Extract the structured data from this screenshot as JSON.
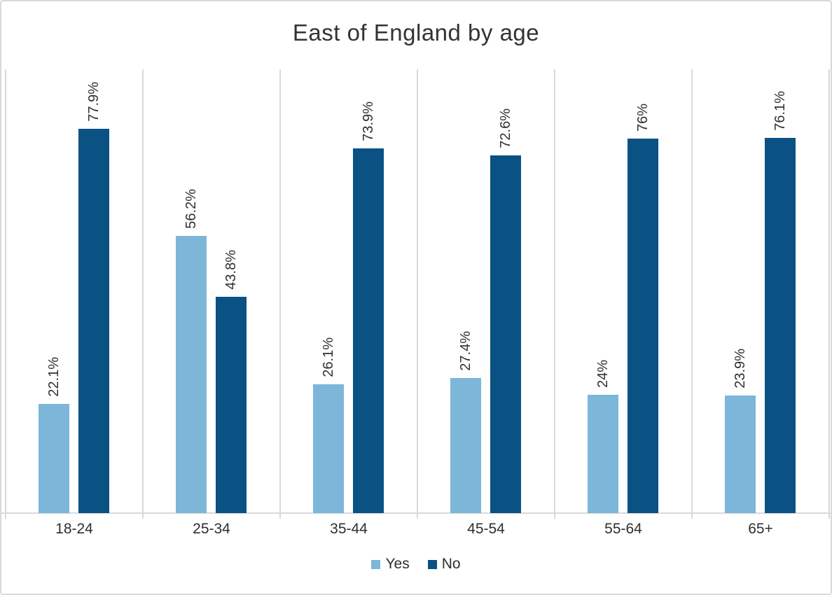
{
  "title": "East of England by age",
  "chart_data": {
    "type": "bar",
    "title": "East of England by age",
    "categories": [
      "18-24",
      "25-34",
      "35-44",
      "45-54",
      "55-64",
      "65+"
    ],
    "series": [
      {
        "name": "Yes",
        "color": "#7CB6D9",
        "values": [
          22.1,
          56.2,
          26.1,
          27.4,
          24,
          23.9
        ],
        "data_labels": [
          "22.1%",
          "56.2%",
          "26.1%",
          "27.4%",
          "24%",
          "23.9%"
        ]
      },
      {
        "name": "No",
        "color": "#0A5184",
        "values": [
          77.9,
          43.8,
          73.9,
          72.6,
          76,
          76.1
        ],
        "data_labels": [
          "77.9%",
          "43.8%",
          "73.9%",
          "72.6%",
          "76%",
          "76.1%"
        ]
      }
    ],
    "xlabel": "",
    "ylabel": "",
    "ylim": [
      0,
      90
    ],
    "y_axis_visible": false,
    "grid": "vertical lines at category boundaries only",
    "data_label_rotation": -90,
    "legend_position": "bottom-center"
  },
  "legend": {
    "items": [
      {
        "label": "Yes",
        "color": "#7CB6D9"
      },
      {
        "label": "No",
        "color": "#0A5184"
      }
    ]
  },
  "colors": {
    "grid": "#D9D9D9",
    "border": "#D9D9D9",
    "text": "#303030",
    "background": "#FFFFFF"
  }
}
